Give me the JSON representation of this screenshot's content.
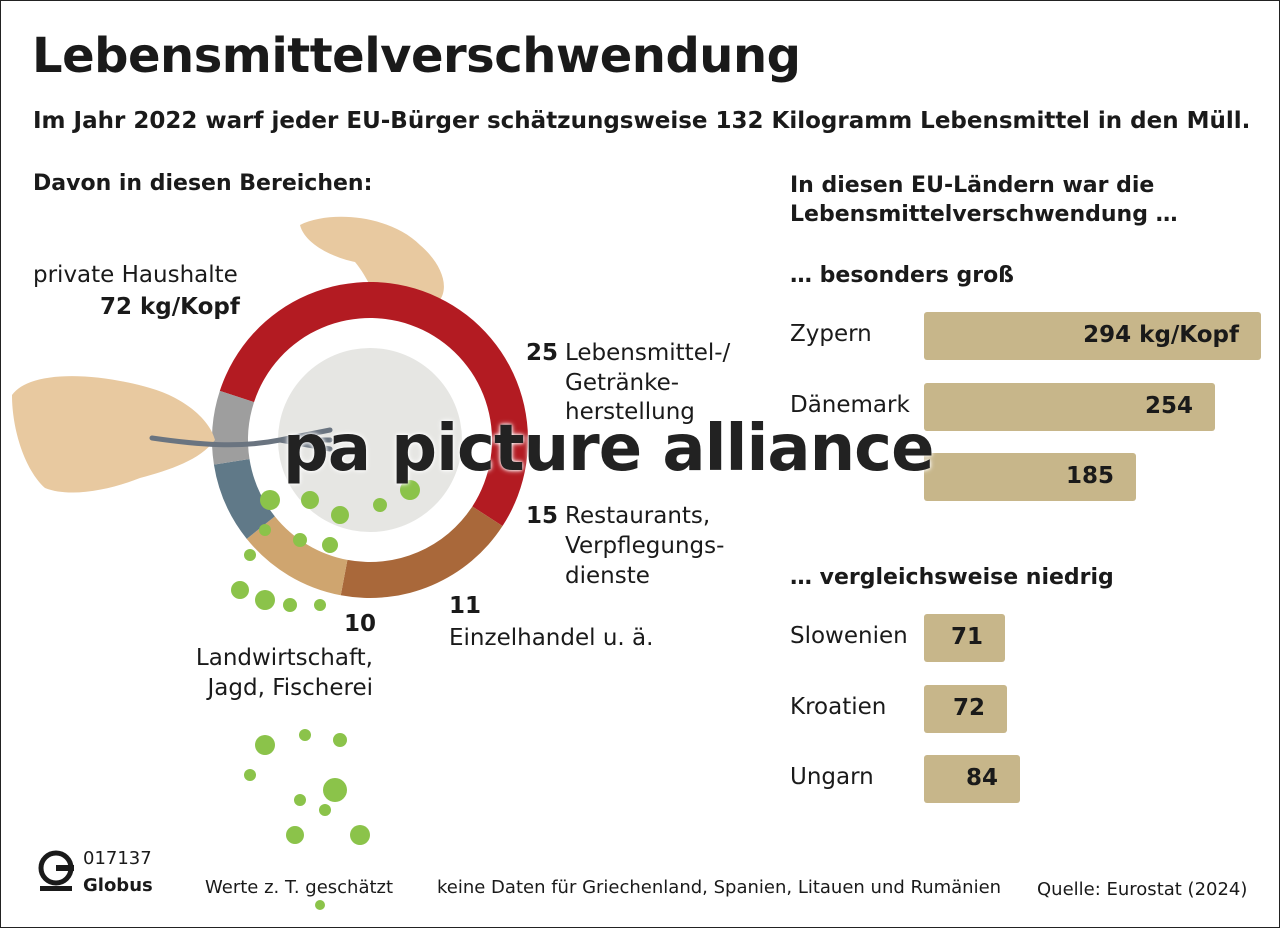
{
  "header": {
    "title": "Lebensmittelverschwendung",
    "subtitle": "Im Jahr 2022 warf jeder EU-Bürger schätzungsweise 132 Kilogramm Lebensmittel in den Müll."
  },
  "donut": {
    "heading": "Davon in diesen Bereichen:",
    "households_label": "private Haushalte",
    "households_value": "72 kg/Kopf",
    "manufacturing_value": "25",
    "manufacturing_label_1": "Lebensmittel-/",
    "manufacturing_label_2": "Getränke-",
    "manufacturing_label_3": "herstellung",
    "restaurants_value": "15",
    "restaurants_label_1": "Restaurants,",
    "restaurants_label_2": "Verpflegungs-",
    "restaurants_label_3": "dienste",
    "retail_value": "11",
    "retail_label": "Einzelhandel u. ä.",
    "agriculture_value": "10",
    "agriculture_label_1": "Landwirtschaft,",
    "agriculture_label_2": "Jagd, Fischerei"
  },
  "countries": {
    "heading": "In diesen EU-Ländern war die Lebensmittelverschwendung …",
    "high_heading": "… besonders groß",
    "low_heading": "… vergleichsweise niedrig",
    "high": [
      {
        "name": "Zypern",
        "label": "294 kg/Kopf"
      },
      {
        "name": "Dänemark",
        "label": "254"
      },
      {
        "name": "",
        "label": "185"
      }
    ],
    "low": [
      {
        "name": "Slowenien",
        "label": "71"
      },
      {
        "name": "Kroatien",
        "label": "72"
      },
      {
        "name": "Ungarn",
        "label": "84"
      }
    ]
  },
  "footer": {
    "id": "017137",
    "brand": "Globus",
    "note_1": "Werte z. T. geschätzt",
    "note_2": "keine Daten für Griechenland, Spanien, Litauen und Rumänien",
    "source": "Quelle: Eurostat (2024)"
  },
  "watermark": "pa picture alliance",
  "colors": {
    "households": "#b31b22",
    "manufacturing": "#a9683a",
    "restaurants": "#cfa56f",
    "retail": "#607988",
    "agriculture": "#9e9e9e",
    "bar": "#c7b68a"
  },
  "chart_data": [
    {
      "type": "pie",
      "title": "Davon in diesen Bereichen:",
      "unit": "kg/Kopf",
      "categories": [
        "private Haushalte",
        "Lebensmittel-/Getränkeherstellung",
        "Restaurants, Verpflegungsdienste",
        "Einzelhandel u. ä.",
        "Landwirtschaft, Jagd, Fischerei"
      ],
      "values": [
        72,
        25,
        15,
        11,
        10
      ]
    },
    {
      "type": "bar",
      "title": "… besonders groß",
      "unit": "kg/Kopf",
      "categories": [
        "Zypern",
        "Dänemark",
        ""
      ],
      "values": [
        294,
        254,
        185
      ]
    },
    {
      "type": "bar",
      "title": "… vergleichsweise niedrig",
      "unit": "kg/Kopf",
      "categories": [
        "Slowenien",
        "Kroatien",
        "Ungarn"
      ],
      "values": [
        71,
        72,
        84
      ]
    }
  ]
}
